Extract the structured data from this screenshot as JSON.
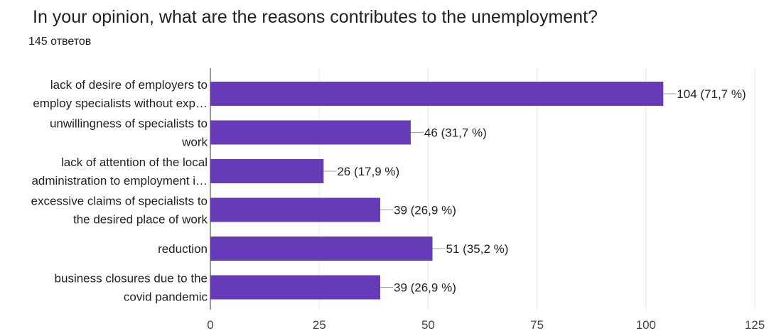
{
  "header": {
    "title": "In your opinion, what are the reasons contributes to the unemployment?",
    "responses": "145 ответов"
  },
  "colors": {
    "bar": "#673AB7",
    "grid": "#e6e6e6",
    "axis": "#333333",
    "leader": "#9e9e9e"
  },
  "chart_data": {
    "type": "bar",
    "orientation": "horizontal",
    "categories": [
      [
        "lack of desire of employers to",
        "employ specialists without exp…"
      ],
      [
        "unwillingness of specialists to",
        "work"
      ],
      [
        "lack of attention of the local",
        "administration to employment i…"
      ],
      [
        "excessive claims of specialists to",
        "the desired place of work"
      ],
      [
        "reduction"
      ],
      [
        "business closures due to the",
        "covid pandemic"
      ]
    ],
    "values": [
      104,
      46,
      26,
      39,
      51,
      39
    ],
    "data_labels": [
      "104 (71,7 %)",
      "46 (31,7 %)",
      "26 (17,9 %)",
      "39 (26,9 %)",
      "51 (35,2 %)",
      "39 (26,9 %)"
    ],
    "xlim": [
      0,
      125
    ],
    "xticks": [
      0,
      25,
      50,
      75,
      100,
      125
    ],
    "grid": true
  }
}
